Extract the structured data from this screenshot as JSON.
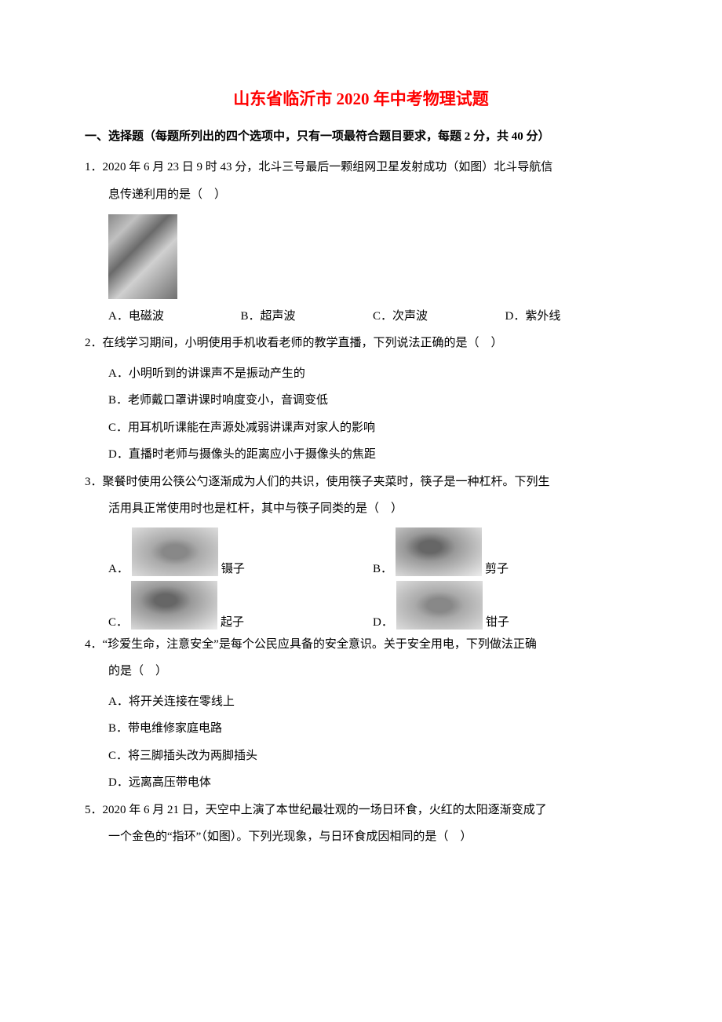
{
  "title": "山东省临沂市 2020 年中考物理试题",
  "section_header": "一、选择题（每题所列出的四个选项中，只有一项最符合题目要求，每题 2 分，共 40 分）",
  "q1": {
    "line1": "1．2020 年 6 月 23 日 9 时 43 分，北斗三号最后一颗组网卫星发射成功（如图）北斗导航信",
    "line2": "息传递利用的是（　）",
    "options": {
      "a": "A．电磁波",
      "b": "B．超声波",
      "c": "C．次声波",
      "d": "D．紫外线"
    }
  },
  "q2": {
    "line1": "2．在线学习期间，小明使用手机收看老师的教学直播，下列说法正确的是（　）",
    "options": {
      "a": "A．小明听到的讲课声不是振动产生的",
      "b": "B．老师戴口罩讲课时响度变小，音调变低",
      "c": "C．用耳机听课能在声源处减弱讲课声对家人的影响",
      "d": "D．直播时老师与摄像头的距离应小于摄像头的焦距"
    }
  },
  "q3": {
    "line1": "3．聚餐时使用公筷公勺逐渐成为人们的共识，使用筷子夹菜时，筷子是一种杠杆。下列生",
    "line2": "活用具正常使用时也是杠杆，其中与筷子同类的是（　）",
    "options": {
      "a_letter": "A．",
      "a_label": "镊子",
      "b_letter": "B．",
      "b_label": "剪子",
      "c_letter": "C．",
      "c_label": "起子",
      "d_letter": "D．",
      "d_label": "钳子"
    }
  },
  "q4": {
    "line1": "4．“珍爱生命，注意安全”是每个公民应具备的安全意识。关于安全用电，下列做法正确",
    "line2": "的是（　）",
    "options": {
      "a": "A．将开关连接在零线上",
      "b": "B．带电维修家庭电路",
      "c": "C．将三脚插头改为两脚插头",
      "d": "D．远离高压带电体"
    }
  },
  "q5": {
    "line1": "5．2020 年 6 月 21 日，天空中上演了本世纪最壮观的一场日环食，火红的太阳逐渐变成了",
    "line2": "一个金色的“指环”（如图）。下列光现象，与日环食成因相同的是（　）"
  }
}
